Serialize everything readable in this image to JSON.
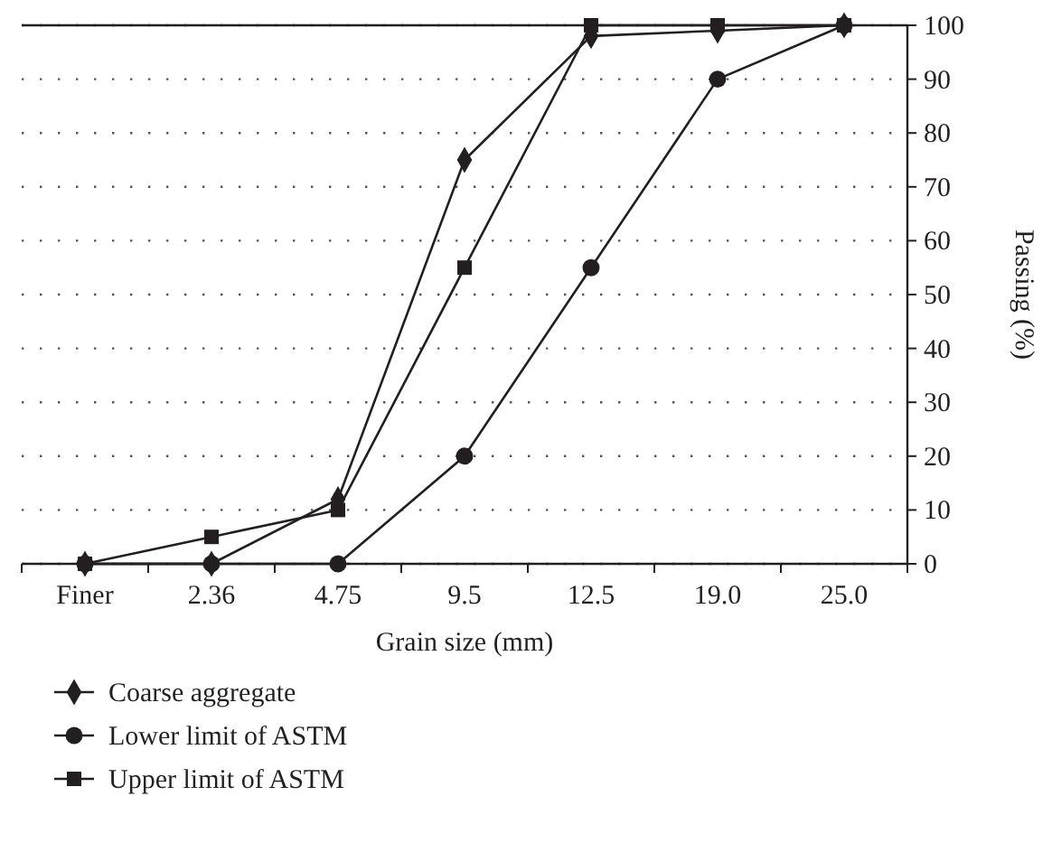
{
  "chart_data": {
    "type": "line",
    "xlabel": "Grain size (mm)",
    "ylabel": "Passing (%)",
    "categories": [
      "Finer",
      "2.36",
      "4.75",
      "9.5",
      "12.5",
      "19.0",
      "25.0"
    ],
    "series": [
      {
        "name": "Coarse aggregate",
        "color": "#231f20",
        "marker": "diamond",
        "values": [
          0,
          0,
          12,
          75,
          98,
          99,
          100
        ]
      },
      {
        "name": "Lower limit of ASTM",
        "color": "#231f20",
        "marker": "circle",
        "values": [
          0,
          0,
          0,
          20,
          55,
          90,
          100
        ]
      },
      {
        "name": "Upper limit of ASTM",
        "color": "#231f20",
        "marker": "square",
        "values": [
          0,
          5,
          10,
          55,
          100,
          100,
          100
        ]
      }
    ],
    "ylim": [
      0,
      100
    ],
    "yticks": [
      0,
      10,
      20,
      30,
      40,
      50,
      60,
      70,
      80,
      90,
      100
    ],
    "grid": "y",
    "legend": "bottom"
  }
}
